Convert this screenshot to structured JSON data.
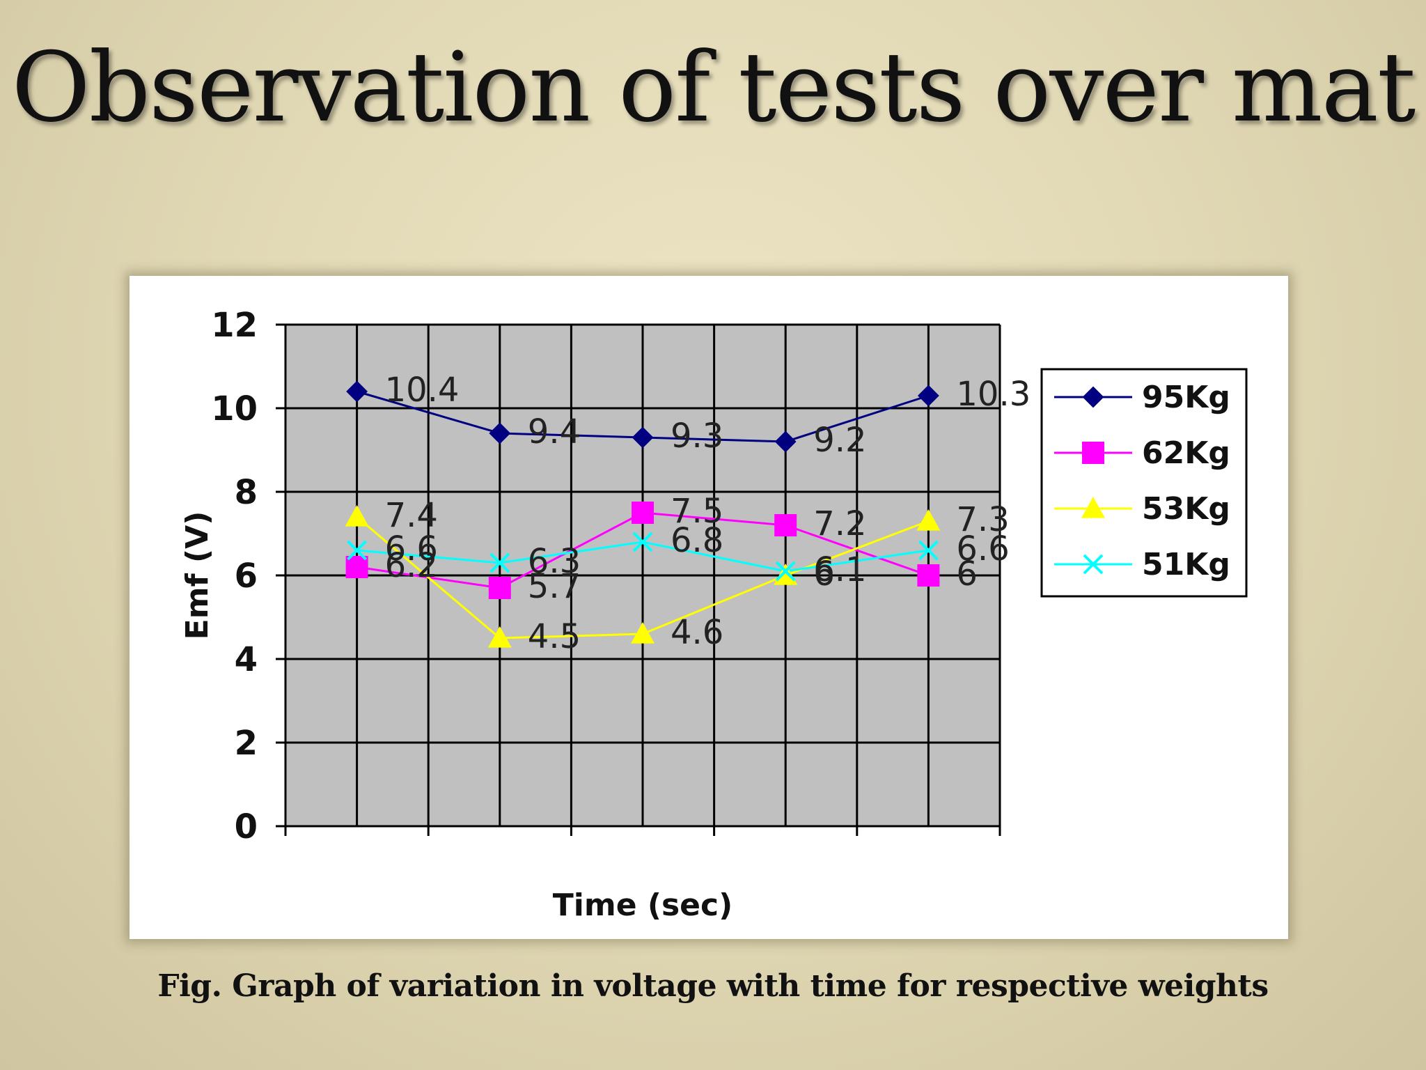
{
  "title": "Observation of tests over mat",
  "caption": "Fig. Graph of variation in voltage with time for respective weights",
  "chart_data": {
    "type": "line",
    "title": "",
    "xlabel": "Time (sec)",
    "ylabel": "Emf (V)",
    "ylim": [
      0,
      12
    ],
    "yticks": [
      0,
      2,
      4,
      6,
      8,
      10,
      12
    ],
    "x": [
      1,
      2,
      3,
      4,
      5
    ],
    "grid": true,
    "plot_background": "#c0c0c0",
    "legend_position": "right",
    "series": [
      {
        "name": "95Kg",
        "color": "#000080",
        "marker": "diamond",
        "values": [
          10.4,
          9.4,
          9.3,
          9.2,
          10.3
        ],
        "labels": [
          "10.4",
          "9.4",
          "9.3",
          "9.2",
          "10.3"
        ]
      },
      {
        "name": "62Kg",
        "color": "#ff00ff",
        "marker": "square",
        "values": [
          6.2,
          5.7,
          7.5,
          7.2,
          6
        ],
        "labels": [
          "6.2",
          "5.7",
          "7.5",
          "7.2",
          "6"
        ]
      },
      {
        "name": "53Kg",
        "color": "#ffff00",
        "marker": "triangle",
        "values": [
          7.4,
          4.5,
          4.6,
          6,
          7.3
        ],
        "labels": [
          "7.4",
          "4.5",
          "4.6",
          "6",
          "7.3"
        ]
      },
      {
        "name": "51Kg",
        "color": "#00ffff",
        "marker": "x",
        "values": [
          6.6,
          6.3,
          6.8,
          6.1,
          6.6
        ],
        "labels": [
          "6.6",
          "6.3",
          "6.8",
          "6.1",
          "6.6"
        ]
      }
    ]
  }
}
